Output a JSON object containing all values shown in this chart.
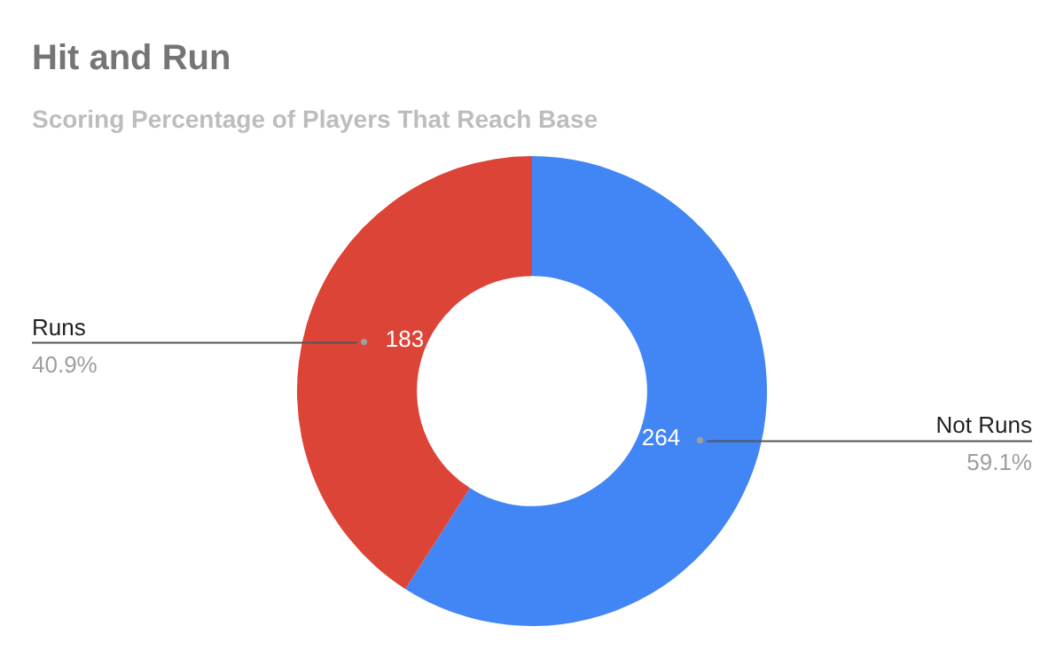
{
  "chart_data": {
    "type": "donut",
    "title": "Hit and Run",
    "subtitle": "Scoring Percentage of Players That Reach Base",
    "categories": [
      "Not Runs",
      "Runs"
    ],
    "values": [
      264,
      183
    ],
    "colors": [
      "#4285f4",
      "#db4437"
    ],
    "value_labels": [
      "264",
      "183"
    ],
    "annotations": [
      "59.1%",
      "40.9%"
    ],
    "legend": false
  }
}
